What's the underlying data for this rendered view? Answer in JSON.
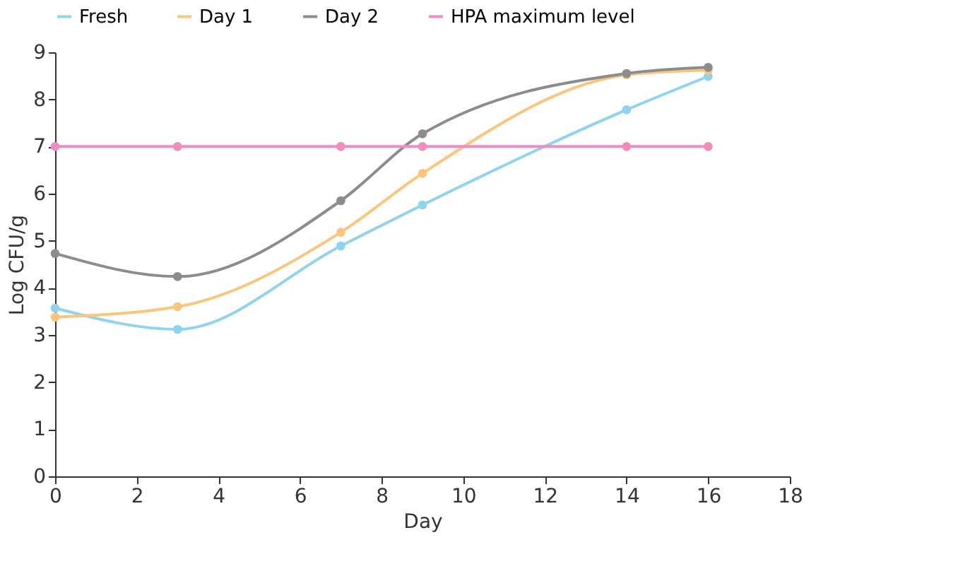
{
  "chart_data": {
    "type": "line",
    "xlabel": "Day",
    "ylabel": "Log CFU/g",
    "x": [
      0,
      3,
      7,
      9,
      14,
      16
    ],
    "series": [
      {
        "name": "Fresh",
        "color": "#8fd3ef",
        "values": [
          3.57,
          3.12,
          4.89,
          5.76,
          7.78,
          8.49
        ]
      },
      {
        "name": "Day 1",
        "color": "#fbc57e",
        "values": [
          3.38,
          3.6,
          5.18,
          6.43,
          8.52,
          8.62
        ]
      },
      {
        "name": "Day 2",
        "color": "#8c8c8c",
        "values": [
          4.73,
          4.24,
          5.85,
          7.27,
          8.55,
          8.68
        ]
      },
      {
        "name": "HPA maximum level",
        "color": "#f08cbf",
        "values": [
          7,
          7,
          7,
          7,
          7,
          7
        ]
      }
    ],
    "xlim": [
      0,
      18
    ],
    "xticks": [
      0,
      2,
      4,
      6,
      8,
      10,
      12,
      14,
      16,
      18
    ],
    "ylim": [
      0,
      9
    ],
    "yticks": [
      0,
      1,
      2,
      3,
      4,
      5,
      6,
      7,
      8,
      9
    ],
    "grid": false,
    "legend": "top",
    "marker": "circle",
    "line_style": "solid"
  }
}
